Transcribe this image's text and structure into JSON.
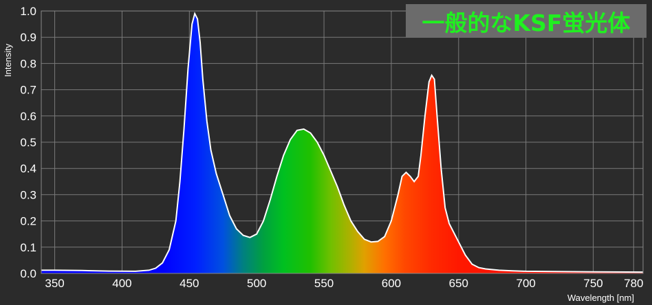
{
  "badge": {
    "text": "一般的なKSF蛍光体",
    "bg": "#6b6b6b",
    "color": "#20f020"
  },
  "chart_data": {
    "type": "area",
    "title": "",
    "xlabel": "Wavelength [nm]",
    "ylabel": "Intensity",
    "xlim": [
      340,
      787
    ],
    "ylim": [
      0,
      1.0
    ],
    "xticks": [
      350,
      400,
      450,
      500,
      550,
      600,
      650,
      700,
      750,
      780
    ],
    "yticks": [
      "0.0",
      "0.1",
      "0.2",
      "0.3",
      "0.4",
      "0.5",
      "0.6",
      "0.7",
      "0.8",
      "0.9",
      "1.0"
    ],
    "grid": true,
    "fill": "visible-spectrum-gradient",
    "series": [
      {
        "x": [
          340,
          350,
          370,
          390,
          410,
          420,
          425,
          430,
          435,
          440,
          443,
          446,
          449,
          452,
          454,
          456,
          458,
          460,
          463,
          466,
          470,
          475,
          480,
          485,
          490,
          495,
          500,
          505,
          510,
          515,
          520,
          525,
          530,
          535,
          540,
          545,
          550,
          555,
          560,
          565,
          570,
          575,
          580,
          585,
          590,
          595,
          600,
          605,
          608,
          611,
          614,
          617,
          620,
          622,
          625,
          628,
          630,
          632,
          634,
          637,
          640,
          643,
          646,
          650,
          655,
          660,
          665,
          670,
          680,
          690,
          700,
          720,
          750,
          787
        ],
        "y": [
          0.012,
          0.012,
          0.011,
          0.009,
          0.008,
          0.012,
          0.02,
          0.04,
          0.09,
          0.2,
          0.35,
          0.55,
          0.78,
          0.95,
          0.99,
          0.97,
          0.88,
          0.74,
          0.58,
          0.47,
          0.38,
          0.3,
          0.22,
          0.17,
          0.145,
          0.137,
          0.15,
          0.2,
          0.28,
          0.37,
          0.45,
          0.51,
          0.545,
          0.55,
          0.535,
          0.5,
          0.45,
          0.39,
          0.33,
          0.26,
          0.2,
          0.16,
          0.13,
          0.12,
          0.122,
          0.14,
          0.2,
          0.3,
          0.37,
          0.385,
          0.37,
          0.35,
          0.37,
          0.45,
          0.6,
          0.73,
          0.755,
          0.74,
          0.6,
          0.4,
          0.25,
          0.19,
          0.16,
          0.12,
          0.07,
          0.035,
          0.022,
          0.017,
          0.012,
          0.01,
          0.008,
          0.007,
          0.006,
          0.005
        ]
      }
    ]
  }
}
